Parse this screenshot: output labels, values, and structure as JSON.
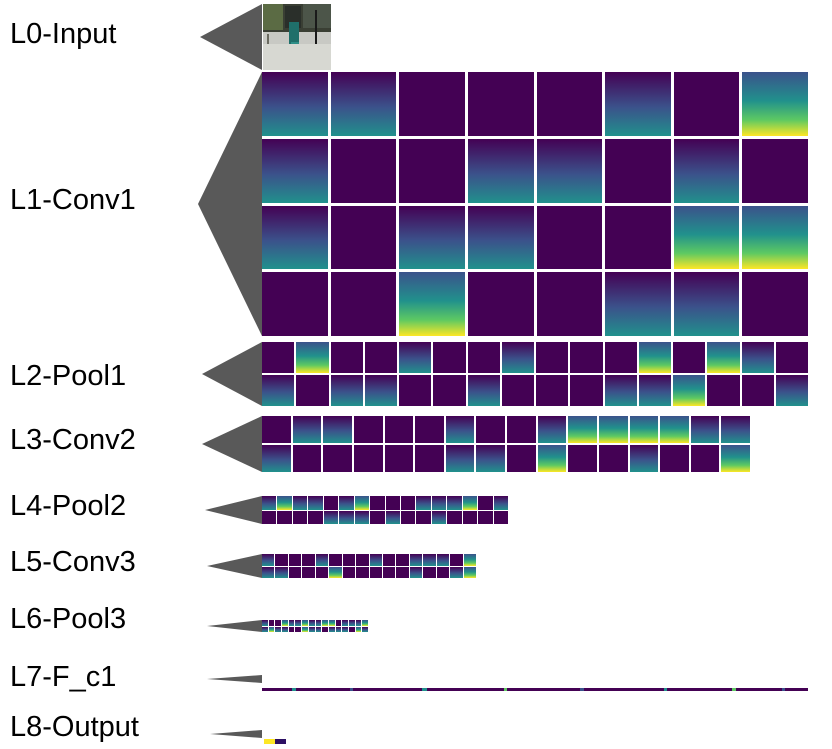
{
  "layers": [
    {
      "id": "l0",
      "label": "L0-Input"
    },
    {
      "id": "l1",
      "label": "L1-Conv1"
    },
    {
      "id": "l2",
      "label": "L2-Pool1"
    },
    {
      "id": "l3",
      "label": "L3-Conv2"
    },
    {
      "id": "l4",
      "label": "L4-Pool2"
    },
    {
      "id": "l5",
      "label": "L5-Conv3"
    },
    {
      "id": "l6",
      "label": "L6-Pool3"
    },
    {
      "id": "l7",
      "label": "L7-F_c1"
    },
    {
      "id": "l8",
      "label": "L8-Output"
    }
  ],
  "colors": {
    "arrow": "#595959",
    "map_dark": "#440154",
    "map_mid": "#3b528b",
    "map_teal": "#21918c",
    "map_green": "#5ec962",
    "map_yellow": "#fde725"
  }
}
